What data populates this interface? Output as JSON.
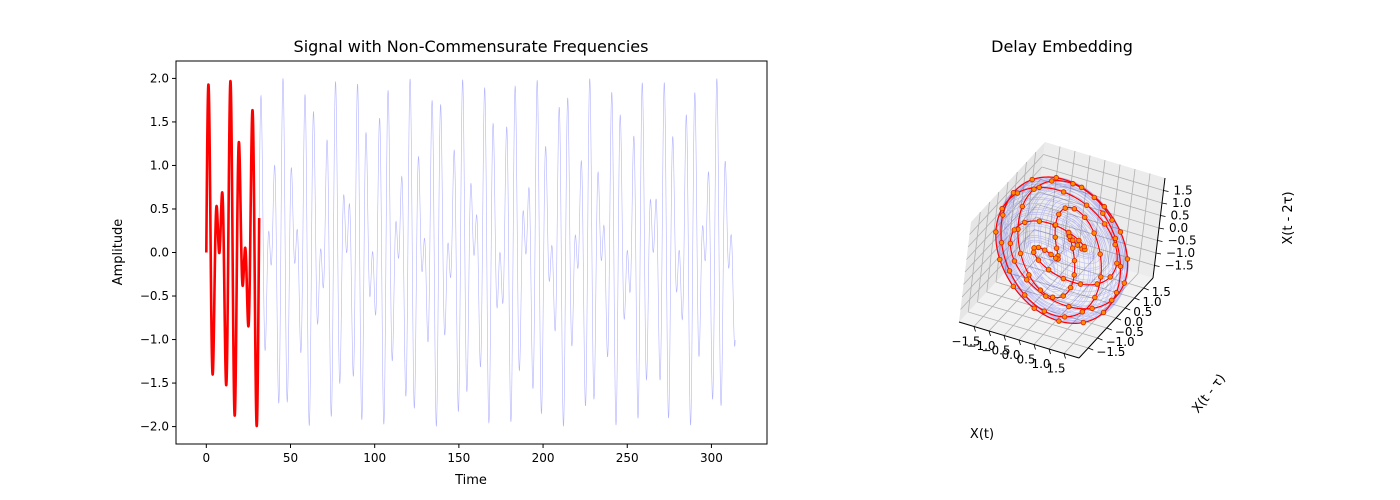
{
  "chart_data": [
    {
      "type": "line",
      "title": "Signal with Non-Commensurate Frequencies",
      "xlabel": "Time",
      "ylabel": "Amplitude",
      "xlim": [
        -18,
        333
      ],
      "ylim": [
        -2.2,
        2.2
      ],
      "xticks": [
        0,
        50,
        100,
        150,
        200,
        250,
        300
      ],
      "yticks": [
        -2.0,
        -1.5,
        -1.0,
        -0.5,
        0.0,
        0.5,
        1.0,
        1.5,
        2.0
      ],
      "xtick_labels": [
        "0",
        "50",
        "100",
        "150",
        "200",
        "250",
        "300"
      ],
      "ytick_labels": [
        "−2.0",
        "−1.5",
        "−1.0",
        "−0.5",
        "0.0",
        "0.5",
        "1.0",
        "1.5",
        "2.0"
      ],
      "grid": false,
      "signal": {
        "components": [
          {
            "amplitude": 1,
            "frequency": 1
          },
          {
            "amplitude": 1,
            "frequency": 1.41421356
          }
        ],
        "x_range": [
          0,
          314.16
        ]
      },
      "series": [
        {
          "role": "full signal",
          "color": "#0000ff",
          "x_range": [
            0,
            314.16
          ]
        },
        {
          "role": "highlighted segment",
          "color": "#ff0000",
          "x_range": [
            0,
            31.4
          ]
        }
      ]
    },
    {
      "type": "scatter",
      "title": "Delay Embedding",
      "xlabel": "X(t)",
      "ylabel": "X(t - τ)",
      "zlabel": "X(t - 2τ)",
      "xticks": [
        "−1.5",
        "−1.0",
        "−0.5",
        "0.0",
        "0.5",
        "1.0",
        "1.5"
      ],
      "yticks": [
        "−1.5",
        "−1.0",
        "−0.5",
        "0.0",
        "0.5",
        "1.0",
        "1.5"
      ],
      "zticks": [
        "−1.5",
        "−1.0",
        "−0.5",
        "0.0",
        "0.5",
        "1.0",
        "1.5"
      ],
      "lim": [
        -2,
        2
      ],
      "colors": {
        "background_trajectory": "#0000ff",
        "highlight_trajectory": "#ff0000",
        "marker_fill": "#ff8c00",
        "marker_edge": "#d62000"
      }
    }
  ]
}
